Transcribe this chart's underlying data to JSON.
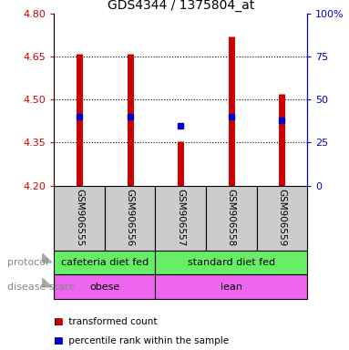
{
  "title": "GDS4344 / 1375804_at",
  "samples": [
    "GSM906555",
    "GSM906556",
    "GSM906557",
    "GSM906558",
    "GSM906559"
  ],
  "transformed_counts": [
    4.66,
    4.66,
    4.355,
    4.72,
    4.52
  ],
  "percentile_ranks_pct": [
    40,
    40,
    35,
    40,
    38
  ],
  "ylim_left": [
    4.2,
    4.8
  ],
  "yticks_left": [
    4.2,
    4.35,
    4.5,
    4.65,
    4.8
  ],
  "yticks_right": [
    0,
    25,
    50,
    75,
    100
  ],
  "ylim_right": [
    0,
    100
  ],
  "bar_color": "#cc0000",
  "dot_color": "#0000cc",
  "protocol_labels": [
    "cafeteria diet fed",
    "standard diet fed"
  ],
  "protocol_color": "#66ee66",
  "disease_labels": [
    "obese",
    "lean"
  ],
  "disease_color": "#ee66ee",
  "sample_box_color": "#cccccc",
  "legend_red_label": "transformed count",
  "legend_blue_label": "percentile rank within the sample",
  "left_axis_color": "#cc0000",
  "right_axis_color": "#0000cc",
  "split_after": 1,
  "n_cafeteria": 2,
  "n_standard": 3
}
